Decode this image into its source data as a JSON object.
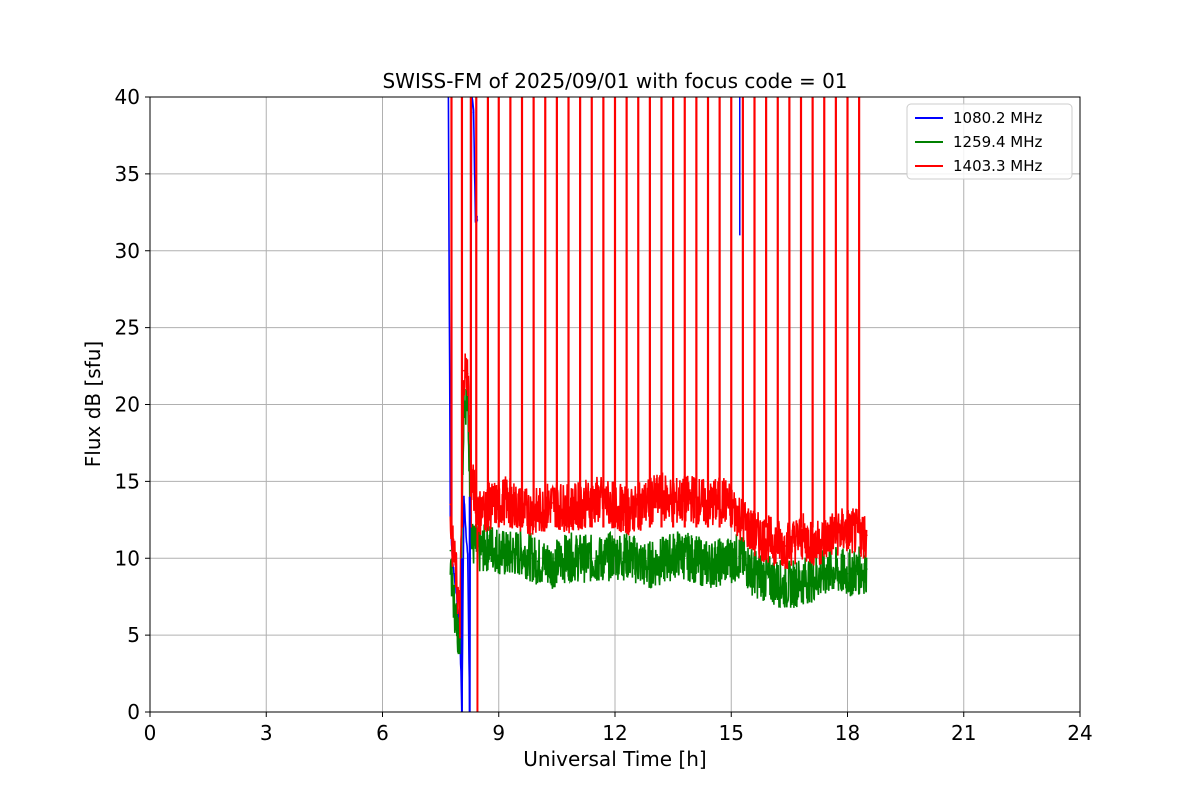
{
  "chart_data": {
    "type": "line",
    "title": "SWISS-FM of 2025/09/01 with focus code = 01",
    "xlabel": "Universal Time [h]",
    "ylabel": "Flux dB [sfu]",
    "xlim": [
      0,
      24
    ],
    "ylim": [
      0,
      40
    ],
    "xticks": [
      "0",
      "3",
      "6",
      "9",
      "12",
      "15",
      "18",
      "21",
      "24"
    ],
    "yticks": [
      "0",
      "5",
      "10",
      "15",
      "20",
      "25",
      "30",
      "35",
      "40"
    ],
    "grid": true,
    "legend_position": "top-right",
    "series": [
      {
        "name": "1080.2 MHz",
        "color": "#0000ff",
        "x": [
          7.7,
          7.75,
          7.8,
          7.9,
          8.0,
          8.05,
          8.1,
          8.2,
          8.25,
          8.3,
          8.35,
          8.4,
          8.45
        ],
        "y": [
          40,
          13,
          10,
          8,
          5,
          0,
          14,
          10,
          0,
          40,
          39,
          32,
          32
        ]
      },
      {
        "name": "1259.4 MHz",
        "color": "#008000",
        "x": [
          7.75,
          7.8,
          7.9,
          8.0,
          8.1,
          8.2,
          8.3,
          8.5,
          8.8,
          9.2,
          9.6,
          10.0,
          10.4,
          10.8,
          11.2,
          11.6,
          12.0,
          12.4,
          12.8,
          13.2,
          13.6,
          14.0,
          14.4,
          14.8,
          15.2,
          15.6,
          16.0,
          16.4,
          16.8,
          17.2,
          17.6,
          18.0,
          18.5
        ],
        "y": [
          10.5,
          8,
          6,
          4.8,
          20.5,
          20,
          11,
          10.5,
          10.8,
          10.2,
          10.4,
          9.8,
          9.6,
          10.1,
          10.0,
          9.9,
          10.2,
          10.1,
          9.5,
          9.8,
          10.3,
          10.0,
          9.6,
          9.8,
          10.1,
          9.0,
          8.6,
          8.2,
          8.5,
          8.8,
          9.2,
          9.0,
          9.3
        ]
      },
      {
        "name": "1403.3 MHz",
        "color": "#ff0000",
        "x": [
          7.75,
          7.8,
          7.9,
          8.0,
          8.1,
          8.2,
          8.3,
          8.5,
          8.8,
          9.2,
          9.6,
          10.0,
          10.4,
          10.8,
          11.2,
          11.6,
          12.0,
          12.4,
          12.8,
          13.2,
          13.6,
          14.0,
          14.4,
          14.8,
          15.2,
          15.6,
          16.0,
          16.4,
          16.8,
          17.2,
          17.6,
          18.0,
          18.5
        ],
        "y": [
          13.5,
          11,
          9,
          6,
          22.2,
          22,
          15,
          13,
          13.4,
          13.8,
          13.1,
          13.0,
          13.6,
          13.2,
          13.5,
          13.8,
          13.4,
          13.0,
          13.6,
          14.0,
          13.7,
          13.9,
          13.5,
          13.8,
          12.8,
          11.5,
          11.2,
          10.8,
          11.4,
          10.9,
          11.6,
          11.8,
          11.5
        ]
      }
    ],
    "calibration_spikes": {
      "description_values_hours": [
        7.78,
        8.05,
        8.28,
        8.42,
        8.72,
        9.0,
        9.3,
        9.6,
        9.9,
        10.2,
        10.5,
        10.8,
        11.1,
        11.4,
        11.7,
        12.0,
        12.3,
        12.6,
        12.9,
        13.2,
        13.5,
        13.8,
        14.1,
        14.4,
        14.7,
        15.0,
        15.3,
        15.6,
        15.9,
        16.2,
        16.5,
        16.8,
        17.1,
        17.4,
        17.7,
        18.0,
        18.3
      ]
    }
  }
}
